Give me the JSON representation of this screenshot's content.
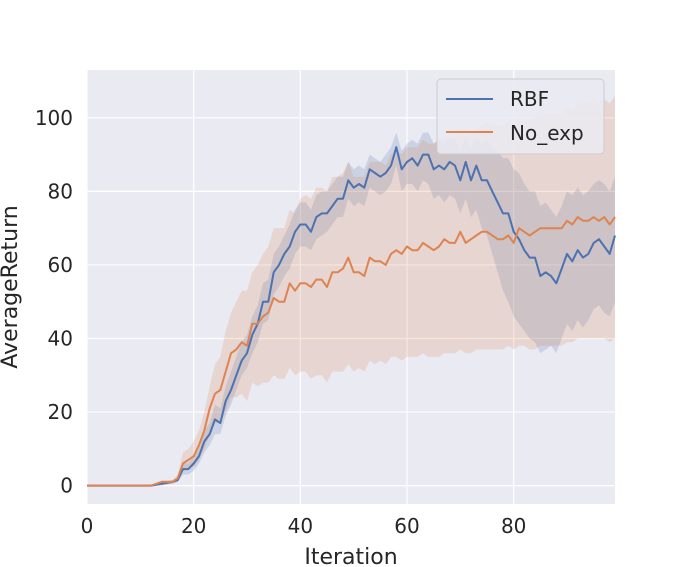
{
  "chart_data": {
    "type": "line",
    "xlabel": "Iteration",
    "ylabel": "AverageReturn",
    "xlim": [
      0,
      99
    ],
    "ylim": [
      -5,
      113
    ],
    "xticks": [
      0,
      20,
      40,
      60,
      80
    ],
    "yticks": [
      0,
      20,
      40,
      60,
      80,
      100
    ],
    "grid": true,
    "legend_position": "top-right",
    "background": "#eaeaf2",
    "series": [
      {
        "name": "RBF",
        "color": "#4c72b0",
        "x": [
          0,
          2,
          4,
          6,
          8,
          10,
          12,
          14,
          16,
          17,
          18,
          19,
          20,
          21,
          22,
          23,
          24,
          25,
          26,
          27,
          28,
          29,
          30,
          31,
          32,
          33,
          34,
          35,
          36,
          37,
          38,
          39,
          40,
          41,
          42,
          43,
          44,
          45,
          46,
          47,
          48,
          49,
          50,
          51,
          52,
          53,
          54,
          55,
          56,
          57,
          58,
          59,
          60,
          61,
          62,
          63,
          64,
          65,
          66,
          67,
          68,
          69,
          70,
          71,
          72,
          73,
          74,
          75,
          76,
          77,
          78,
          79,
          80,
          81,
          82,
          83,
          84,
          85,
          86,
          87,
          88,
          89,
          90,
          91,
          92,
          93,
          94,
          95,
          96,
          97,
          98,
          99
        ],
        "y": [
          0,
          0,
          0,
          0,
          0,
          0,
          0,
          0.5,
          1,
          1.5,
          4.5,
          4.5,
          6,
          8,
          12,
          14,
          18,
          17,
          23,
          26,
          30,
          34,
          36,
          41,
          44,
          50,
          50,
          58,
          60,
          63,
          65,
          69,
          71,
          71,
          69,
          73,
          74,
          74,
          76,
          78,
          78,
          83,
          81,
          82,
          81,
          86,
          85,
          84,
          85,
          87,
          92,
          86,
          88,
          89,
          87,
          90,
          90,
          86,
          87,
          86,
          88,
          87,
          83,
          88,
          83,
          87,
          83,
          83,
          80,
          77,
          74,
          74,
          69,
          67,
          64,
          62,
          62,
          57,
          58,
          57,
          55,
          59,
          63,
          61,
          64,
          62,
          63,
          66,
          67,
          65,
          63,
          68
        ],
        "band_low": [
          0,
          0,
          0,
          0,
          0,
          0,
          0,
          0,
          0.5,
          1,
          3,
          3,
          4,
          6,
          9,
          11,
          14,
          14,
          19,
          22,
          26,
          30,
          32,
          36,
          39,
          44,
          45,
          52,
          54,
          57,
          59,
          63,
          65,
          65,
          64,
          67,
          68,
          69,
          71,
          73,
          73,
          78,
          76,
          77,
          76,
          81,
          80,
          79,
          80,
          82,
          87,
          80,
          82,
          82,
          80,
          83,
          82,
          78,
          79,
          77,
          79,
          78,
          74,
          78,
          73,
          75,
          70,
          68,
          63,
          58,
          53,
          50,
          46,
          44,
          42,
          40,
          39,
          36,
          37,
          38,
          36,
          40,
          44,
          42,
          45,
          43,
          45,
          48,
          49,
          47,
          46,
          50
        ],
        "band_high": [
          0,
          0,
          0,
          0,
          0,
          0,
          0,
          1,
          1.5,
          2,
          6,
          6,
          8,
          10,
          15,
          17,
          22,
          21,
          27,
          31,
          35,
          39,
          41,
          46,
          49,
          55,
          56,
          63,
          65,
          68,
          71,
          75,
          77,
          77,
          75,
          79,
          80,
          80,
          82,
          84,
          84,
          88,
          86,
          87,
          86,
          90,
          89,
          88,
          90,
          92,
          96,
          91,
          93,
          94,
          93,
          96,
          96,
          93,
          94,
          93,
          95,
          94,
          91,
          95,
          91,
          95,
          93,
          94,
          92,
          91,
          89,
          89,
          86,
          85,
          82,
          80,
          80,
          76,
          77,
          75,
          73,
          76,
          80,
          79,
          81,
          79,
          80,
          82,
          83,
          82,
          80,
          84
        ]
      },
      {
        "name": "No_exp",
        "color": "#dd8452",
        "x": [
          0,
          2,
          4,
          6,
          8,
          10,
          12,
          14,
          16,
          17,
          18,
          19,
          20,
          21,
          22,
          23,
          24,
          25,
          26,
          27,
          28,
          29,
          30,
          31,
          32,
          33,
          34,
          35,
          36,
          37,
          38,
          39,
          40,
          41,
          42,
          43,
          44,
          45,
          46,
          47,
          48,
          49,
          50,
          51,
          52,
          53,
          54,
          55,
          56,
          57,
          58,
          59,
          60,
          61,
          62,
          63,
          64,
          65,
          66,
          67,
          68,
          69,
          70,
          71,
          72,
          73,
          74,
          75,
          76,
          77,
          78,
          79,
          80,
          81,
          82,
          83,
          84,
          85,
          86,
          87,
          88,
          89,
          90,
          91,
          92,
          93,
          94,
          95,
          96,
          97,
          98,
          99
        ],
        "y": [
          0,
          0,
          0,
          0,
          0,
          0,
          0,
          1,
          1,
          2,
          6,
          7,
          8,
          11,
          15,
          21,
          25,
          26,
          31,
          36,
          37,
          39,
          38,
          44,
          44,
          46,
          47,
          51,
          50,
          50,
          55,
          53,
          55,
          55,
          54,
          56,
          56,
          54,
          58,
          58,
          59,
          62,
          58,
          58,
          57,
          62,
          61,
          61,
          60,
          63,
          64,
          63,
          65,
          64,
          64,
          66,
          65,
          64,
          65,
          67,
          66,
          66,
          69,
          66,
          67,
          68,
          69,
          69,
          68,
          67,
          67,
          68,
          66,
          70,
          69,
          68,
          69,
          70,
          70,
          70,
          70,
          70,
          72,
          71,
          73,
          72,
          72,
          73,
          72,
          73,
          71,
          73
        ],
        "band_low": [
          0,
          0,
          0,
          0,
          0,
          0,
          0,
          0.5,
          0.5,
          1,
          4,
          5,
          5,
          7,
          10,
          14,
          17,
          17,
          20,
          24,
          24,
          25,
          23,
          28,
          27,
          28,
          28,
          30,
          29,
          29,
          32,
          30,
          31,
          31,
          29,
          30,
          30,
          28,
          31,
          31,
          31,
          33,
          31,
          32,
          31,
          34,
          33,
          34,
          33,
          35,
          35,
          34,
          35,
          35,
          35,
          36,
          35,
          35,
          35,
          36,
          36,
          36,
          37,
          36,
          36,
          37,
          37,
          37,
          37,
          37,
          37,
          38,
          37,
          38,
          38,
          37,
          37,
          38,
          38,
          38,
          38,
          38,
          39,
          39,
          40,
          40,
          40,
          40,
          40,
          40,
          39,
          40
        ],
        "band_high": [
          0,
          0,
          0,
          0,
          0,
          0,
          0,
          1.5,
          1.5,
          3,
          9,
          10,
          12,
          15,
          20,
          27,
          33,
          35,
          42,
          47,
          50,
          53,
          53,
          58,
          60,
          63,
          65,
          70,
          70,
          70,
          75,
          74,
          78,
          79,
          78,
          81,
          81,
          80,
          84,
          84,
          85,
          88,
          84,
          84,
          84,
          88,
          88,
          88,
          87,
          90,
          91,
          90,
          92,
          92,
          92,
          94,
          93,
          93,
          94,
          95,
          94,
          95,
          97,
          95,
          96,
          97,
          98,
          99,
          98,
          98,
          98,
          99,
          97,
          100,
          99,
          99,
          100,
          101,
          101,
          101,
          101,
          101,
          103,
          102,
          104,
          104,
          104,
          105,
          104,
          105,
          104,
          106
        ]
      }
    ]
  }
}
